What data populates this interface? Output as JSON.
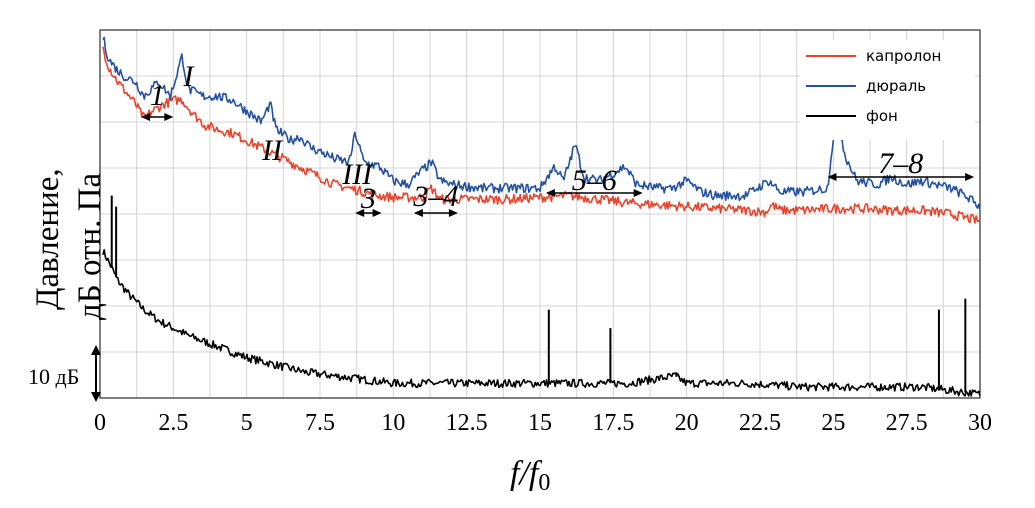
{
  "chart_data": {
    "type": "line",
    "xlabel": "f/f0",
    "xlabel_main": "f/f",
    "xlabel_sub": "0",
    "ylabel_line1": "Давление,",
    "ylabel_line2": "дБ отн. Па",
    "xlim": [
      0,
      30
    ],
    "x_ticks": [
      "0",
      "2.5",
      "5",
      "7.5",
      "10",
      "12.5",
      "15",
      "17.5",
      "20",
      "22.5",
      "25",
      "27.5",
      "30"
    ],
    "grid": true,
    "legend_position": "top-right",
    "scale_bar_label": "10 дБ",
    "series": [
      {
        "name": "капролон",
        "color": "#e8452e",
        "points": [
          [
            0.1,
            33
          ],
          [
            0.3,
            28
          ],
          [
            0.6,
            24
          ],
          [
            0.9,
            21
          ],
          [
            1.2,
            18
          ],
          [
            1.5,
            14
          ],
          [
            1.8,
            16
          ],
          [
            2.2,
            18
          ],
          [
            2.6,
            19
          ],
          [
            2.8,
            19
          ],
          [
            3.2,
            15
          ],
          [
            3.6,
            12
          ],
          [
            4.0,
            11
          ],
          [
            4.5,
            10
          ],
          [
            5.0,
            8
          ],
          [
            5.5,
            6
          ],
          [
            6.0,
            4
          ],
          [
            6.5,
            2
          ],
          [
            7.0,
            0
          ],
          [
            7.5,
            -2
          ],
          [
            8.0,
            -4
          ],
          [
            8.5,
            -5
          ],
          [
            9.0,
            -6
          ],
          [
            9.5,
            -7
          ],
          [
            10,
            -7.5
          ],
          [
            11,
            -7.5
          ],
          [
            11.3,
            -5
          ],
          [
            11.6,
            -8
          ],
          [
            12.5,
            -8
          ],
          [
            14,
            -8
          ],
          [
            15,
            -7.5
          ],
          [
            16,
            -7
          ],
          [
            17,
            -8
          ],
          [
            18,
            -9
          ],
          [
            19,
            -9.5
          ],
          [
            20,
            -10
          ],
          [
            21,
            -10.5
          ],
          [
            22,
            -11
          ],
          [
            22.7,
            -11.5
          ],
          [
            22.9,
            -9.5
          ],
          [
            23.2,
            -11
          ],
          [
            24,
            -11
          ],
          [
            25,
            -10.5
          ],
          [
            26,
            -10.5
          ],
          [
            27,
            -11
          ],
          [
            28,
            -11
          ],
          [
            29,
            -12
          ],
          [
            30,
            -14
          ]
        ]
      },
      {
        "name": "дюраль",
        "color": "#2452a0",
        "points": [
          [
            0.1,
            36
          ],
          [
            0.3,
            30
          ],
          [
            0.6,
            27
          ],
          [
            0.9,
            25
          ],
          [
            1.2,
            24
          ],
          [
            1.5,
            20
          ],
          [
            2.0,
            24
          ],
          [
            2.4,
            20
          ],
          [
            2.8,
            31
          ],
          [
            3.0,
            22
          ],
          [
            3.5,
            20
          ],
          [
            4.0,
            20
          ],
          [
            4.5,
            19
          ],
          [
            5.0,
            16
          ],
          [
            5.5,
            13
          ],
          [
            5.8,
            18
          ],
          [
            6.0,
            11
          ],
          [
            6.5,
            8
          ],
          [
            6.8,
            9
          ],
          [
            7.2,
            6
          ],
          [
            7.5,
            5
          ],
          [
            8.0,
            3
          ],
          [
            8.5,
            2
          ],
          [
            8.7,
            10
          ],
          [
            9.0,
            2
          ],
          [
            9.5,
            1
          ],
          [
            10,
            -3
          ],
          [
            10.5,
            -4
          ],
          [
            11.0,
            0
          ],
          [
            11.3,
            2
          ],
          [
            11.6,
            -3
          ],
          [
            12,
            -4
          ],
          [
            13,
            -5
          ],
          [
            14,
            -5
          ],
          [
            15,
            -5
          ],
          [
            15.5,
            1
          ],
          [
            15.8,
            -3
          ],
          [
            16.2,
            7
          ],
          [
            16.5,
            -2
          ],
          [
            17,
            -3
          ],
          [
            17.5,
            -1
          ],
          [
            17.9,
            1
          ],
          [
            18.3,
            -4
          ],
          [
            19,
            -5
          ],
          [
            19.5,
            -5
          ],
          [
            20,
            -3
          ],
          [
            20.5,
            -6
          ],
          [
            21,
            -7
          ],
          [
            22,
            -7
          ],
          [
            22.8,
            -3
          ],
          [
            23.2,
            -6
          ],
          [
            24,
            -6
          ],
          [
            24.8,
            -5
          ],
          [
            25.1,
            16
          ],
          [
            25.4,
            4
          ],
          [
            25.8,
            -3
          ],
          [
            26.5,
            -4
          ],
          [
            27,
            -2
          ],
          [
            27.5,
            -4
          ],
          [
            28,
            -3
          ],
          [
            28.5,
            -4
          ],
          [
            29,
            -5
          ],
          [
            29.5,
            -7
          ],
          [
            30,
            -10
          ]
        ]
      },
      {
        "name": "фон",
        "color": "#000000",
        "points": [
          [
            0.1,
            -22
          ],
          [
            0.3,
            -25
          ],
          [
            0.6,
            -30
          ],
          [
            1.0,
            -34
          ],
          [
            1.5,
            -38
          ],
          [
            2.0,
            -41
          ],
          [
            3.0,
            -45
          ],
          [
            4.0,
            -48
          ],
          [
            5.0,
            -51
          ],
          [
            6.0,
            -53
          ],
          [
            7.0,
            -55
          ],
          [
            8.0,
            -56
          ],
          [
            9.0,
            -57
          ],
          [
            10,
            -58
          ],
          [
            12,
            -58
          ],
          [
            14,
            -58
          ],
          [
            16,
            -58
          ],
          [
            18,
            -58
          ],
          [
            19.6,
            -56
          ],
          [
            20,
            -58
          ],
          [
            22,
            -58
          ],
          [
            24,
            -59
          ],
          [
            26,
            -59
          ],
          [
            28,
            -59
          ],
          [
            30,
            -61
          ]
        ],
        "spikes": [
          [
            0.4,
            -7
          ],
          [
            0.55,
            -10
          ],
          [
            15.3,
            -38
          ],
          [
            17.4,
            -43
          ],
          [
            19.65,
            -55
          ],
          [
            28.6,
            -38
          ],
          [
            29.5,
            -35
          ]
        ]
      }
    ],
    "annotations": [
      {
        "label": "1",
        "range": [
          1.4,
          2.5
        ]
      },
      {
        "label": "I",
        "at": 2.95
      },
      {
        "label": "II",
        "at": 5.8
      },
      {
        "label": "III",
        "at": 8.7
      },
      {
        "label": "3",
        "range": [
          8.7,
          9.6
        ]
      },
      {
        "label": "3–4",
        "range": [
          10.7,
          12.2
        ]
      },
      {
        "label": "5–6",
        "range": [
          15.2,
          18.5
        ]
      },
      {
        "label": "7–8",
        "range": [
          24.8,
          29.8
        ]
      }
    ]
  }
}
